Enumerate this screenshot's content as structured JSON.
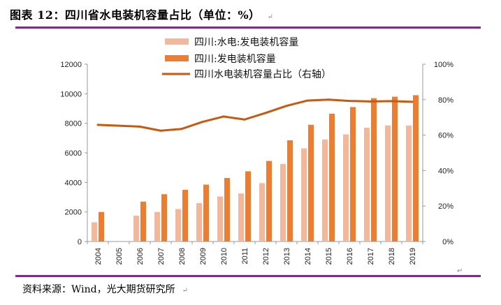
{
  "title": "图表 12：四川省水电装机容量占比（单位：%）",
  "source": "资料来源：Wind，光大期货研究所",
  "colors": {
    "hydro": "#f4b79a",
    "total": "#ed7d31",
    "ratio": "#c55a11",
    "rule": "#7b2d8e"
  },
  "chart_data": {
    "type": "bar",
    "categories": [
      "2004",
      "2005",
      "2006",
      "2007",
      "2008",
      "2009",
      "2010",
      "2011",
      "2012",
      "2013",
      "2014",
      "2015",
      "2016",
      "2017",
      "2018",
      "2019"
    ],
    "series": [
      {
        "name": "四川:水电:发电装机容量",
        "type": "bar",
        "axis": "left",
        "values": [
          1300,
          null,
          1750,
          2000,
          2200,
          2600,
          3050,
          3250,
          3950,
          5250,
          6300,
          6900,
          7250,
          7700,
          7850,
          7850
        ]
      },
      {
        "name": "四川:发电装机容量",
        "type": "bar",
        "axis": "left",
        "values": [
          2000,
          null,
          2700,
          3200,
          3500,
          3850,
          4300,
          4750,
          5450,
          6850,
          7900,
          8650,
          9100,
          9700,
          9800,
          9900
        ]
      },
      {
        "name": "四川水电装机容量占比（右轴）",
        "type": "line",
        "axis": "right",
        "values": [
          65.8,
          null,
          64.8,
          62.5,
          63.5,
          67.5,
          70.5,
          68.8,
          72.5,
          76.5,
          79.5,
          80.0,
          79.3,
          79.0,
          79.2,
          78.8
        ]
      }
    ],
    "y_left": {
      "min": 0,
      "max": 12000,
      "ticks": [
        "0",
        "2000",
        "4000",
        "6000",
        "8000",
        "10000",
        "12000"
      ]
    },
    "y_right": {
      "min": 0,
      "max": 100,
      "ticks": [
        "0%",
        "20%",
        "40%",
        "60%",
        "80%",
        "100%"
      ]
    },
    "xlabel": "",
    "ylabel": "",
    "legend_position": "top-left"
  }
}
